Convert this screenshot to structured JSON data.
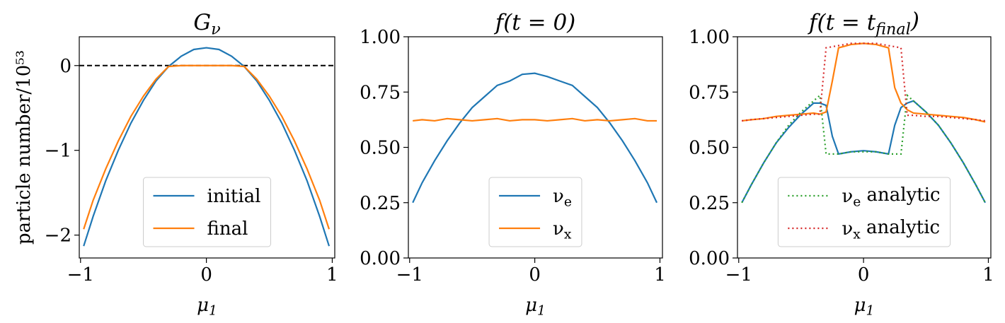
{
  "chart_data": [
    {
      "type": "line",
      "title": [
        {
          "text": "G"
        },
        {
          "text": "ν",
          "sub": true
        }
      ],
      "xlabel": [
        {
          "text": "μ"
        },
        {
          "text": "1",
          "sub": true
        }
      ],
      "ylabel": "particle number/10⁵³",
      "xlim": [
        -1.01,
        1.02
      ],
      "ylim": [
        -2.27,
        0.34
      ],
      "xticks": [
        {
          "value": -1,
          "label": "−1"
        },
        0,
        1
      ],
      "yticks": [
        {
          "value": -2,
          "label": "−2"
        },
        {
          "value": -1,
          "label": "−1"
        },
        0
      ],
      "hline": {
        "y": 0,
        "color": "#000000",
        "style": "dashed"
      },
      "legend": "lower center",
      "x": [
        -0.975,
        -0.9,
        -0.8,
        -0.7,
        -0.6,
        -0.5,
        -0.4,
        -0.3,
        -0.2,
        -0.1,
        0,
        0.1,
        0.2,
        0.3,
        0.4,
        0.5,
        0.6,
        0.7,
        0.8,
        0.9,
        0.975
      ],
      "series": [
        {
          "name": "initial",
          "color": "#1f77b4",
          "style": "solid",
          "values": [
            -2.13,
            -1.78,
            -1.36,
            -1.0,
            -0.68,
            -0.41,
            -0.18,
            -0.01,
            0.11,
            0.19,
            0.21,
            0.19,
            0.11,
            -0.01,
            -0.18,
            -0.41,
            -0.68,
            -1.0,
            -1.36,
            -1.78,
            -2.13
          ]
        },
        {
          "name": "final",
          "color": "#ff7f0e",
          "style": "solid",
          "values": [
            -1.93,
            -1.59,
            -1.22,
            -0.89,
            -0.6,
            -0.36,
            -0.16,
            -0.01,
            0,
            0,
            0,
            0,
            0,
            -0.01,
            -0.16,
            -0.36,
            -0.6,
            -0.89,
            -1.22,
            -1.59,
            -1.93
          ]
        }
      ]
    },
    {
      "type": "line",
      "title": [
        {
          "text": "f(t = 0)"
        }
      ],
      "xlabel": [
        {
          "text": "μ"
        },
        {
          "text": "1",
          "sub": true
        }
      ],
      "xlim": [
        -1.01,
        1.02
      ],
      "ylim": [
        0,
        1
      ],
      "xticks": [
        {
          "value": -1,
          "label": "−1"
        },
        0,
        1
      ],
      "yticks": [
        {
          "value": 0,
          "label": "0.00"
        },
        0.25,
        {
          "value": 0.5,
          "label": "0.50"
        },
        0.75,
        {
          "value": 1,
          "label": "1.00"
        }
      ],
      "legend": "lower center",
      "x": [
        -0.975,
        -0.9,
        -0.8,
        -0.7,
        -0.6,
        -0.5,
        -0.4,
        -0.3,
        -0.2,
        -0.1,
        0,
        0.1,
        0.2,
        0.3,
        0.4,
        0.5,
        0.6,
        0.7,
        0.8,
        0.9,
        0.975
      ],
      "series": [
        {
          "name": [
            {
              "text": "ν"
            },
            {
              "text": "e",
              "sub": true
            }
          ],
          "color": "#1f77b4",
          "style": "solid",
          "values": [
            0.25,
            0.34,
            0.44,
            0.53,
            0.61,
            0.68,
            0.73,
            0.78,
            0.8,
            0.83,
            0.835,
            0.82,
            0.8,
            0.78,
            0.73,
            0.68,
            0.61,
            0.53,
            0.44,
            0.34,
            0.25
          ]
        },
        {
          "name": [
            {
              "text": "ν"
            },
            {
              "text": "x",
              "sub": true
            }
          ],
          "color": "#ff7f0e",
          "style": "solid",
          "values": [
            0.62,
            0.625,
            0.62,
            0.63,
            0.625,
            0.62,
            0.625,
            0.63,
            0.62,
            0.625,
            0.625,
            0.62,
            0.625,
            0.63,
            0.62,
            0.625,
            0.62,
            0.625,
            0.63,
            0.62,
            0.62
          ]
        }
      ]
    },
    {
      "type": "line",
      "title": [
        {
          "text": "f(t = t"
        },
        {
          "text": "final",
          "sub": true
        },
        {
          "text": ")"
        }
      ],
      "xlabel": [
        {
          "text": "μ"
        },
        {
          "text": "1",
          "sub": true
        }
      ],
      "xlim": [
        -1.01,
        1.02
      ],
      "ylim": [
        0,
        1
      ],
      "xticks": [
        {
          "value": -1,
          "label": "−1"
        },
        0,
        1
      ],
      "yticks": [
        {
          "value": 0,
          "label": "0.00"
        },
        0.25,
        {
          "value": 0.5,
          "label": "0.50"
        },
        0.75,
        {
          "value": 1,
          "label": "1.00"
        }
      ],
      "legend": "lower center",
      "x": [
        -0.975,
        -0.9,
        -0.8,
        -0.7,
        -0.6,
        -0.5,
        -0.4,
        -0.35,
        -0.3,
        -0.25,
        -0.2,
        -0.1,
        0,
        0.1,
        0.2,
        0.25,
        0.3,
        0.35,
        0.4,
        0.5,
        0.6,
        0.7,
        0.8,
        0.9,
        0.975
      ],
      "series": [
        {
          "color": "#1f77b4",
          "style": "solid",
          "values": [
            0.25,
            0.33,
            0.43,
            0.52,
            0.59,
            0.65,
            0.7,
            0.7,
            0.69,
            0.55,
            0.47,
            0.48,
            0.485,
            0.48,
            0.47,
            0.6,
            0.68,
            0.7,
            0.71,
            0.66,
            0.6,
            0.52,
            0.43,
            0.33,
            0.25
          ]
        },
        {
          "color": "#ff7f0e",
          "style": "solid",
          "values": [
            0.62,
            0.625,
            0.63,
            0.64,
            0.645,
            0.65,
            0.655,
            0.65,
            0.66,
            0.8,
            0.95,
            0.965,
            0.97,
            0.965,
            0.95,
            0.77,
            0.7,
            0.67,
            0.655,
            0.65,
            0.645,
            0.64,
            0.635,
            0.625,
            0.615
          ]
        },
        {
          "name": [
            {
              "text": "ν"
            },
            {
              "text": "e",
              "sub": true
            },
            {
              "text": " analytic"
            }
          ],
          "color": "#2ca02c",
          "style": "dotted",
          "values": [
            0.25,
            0.33,
            0.43,
            0.52,
            0.6,
            0.66,
            0.71,
            0.735,
            0.47,
            0.47,
            0.47,
            0.48,
            0.48,
            0.48,
            0.47,
            0.47,
            0.47,
            0.735,
            0.71,
            0.66,
            0.6,
            0.52,
            0.43,
            0.33,
            0.25
          ]
        },
        {
          "name": [
            {
              "text": "ν"
            },
            {
              "text": "x",
              "sub": true
            },
            {
              "text": " analytic"
            }
          ],
          "color": "#d62728",
          "style": "dotted",
          "values": [
            0.62,
            0.625,
            0.63,
            0.635,
            0.64,
            0.645,
            0.65,
            0.65,
            0.95,
            0.955,
            0.96,
            0.97,
            0.97,
            0.97,
            0.96,
            0.955,
            0.95,
            0.645,
            0.645,
            0.64,
            0.64,
            0.635,
            0.63,
            0.625,
            0.62
          ]
        }
      ]
    }
  ]
}
